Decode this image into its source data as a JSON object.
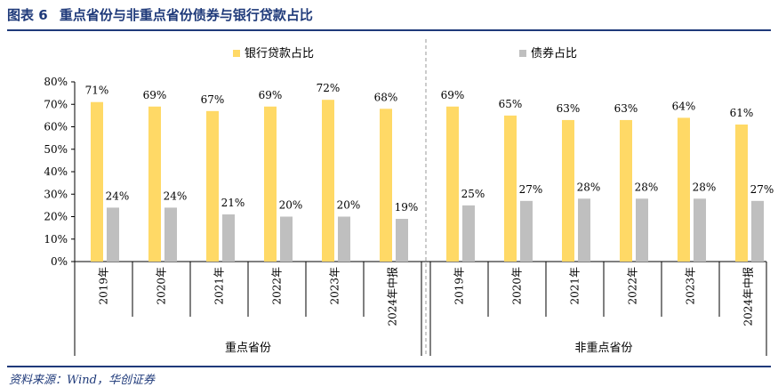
{
  "figure": {
    "number": "图表 6",
    "title": "重点省份与非重点省份债券与银行贷款占比",
    "source": "资料来源：Wind，华创证券"
  },
  "chart_data": {
    "type": "bar",
    "categories": [
      "2019年",
      "2020年",
      "2021年",
      "2022年",
      "2023年",
      "2024年中报",
      "2019年",
      "2020年",
      "2021年",
      "2022年",
      "2023年",
      "2024年中报"
    ],
    "groups": [
      {
        "label": "重点省份",
        "count": 6
      },
      {
        "label": "非重点省份",
        "count": 6
      }
    ],
    "series": [
      {
        "name": "银行贷款占比",
        "color": "#FFD966",
        "values": [
          71,
          69,
          67,
          69,
          72,
          68,
          69,
          65,
          63,
          63,
          64,
          61
        ],
        "labels": [
          "71%",
          "69%",
          "67%",
          "69%",
          "72%",
          "68%",
          "69%",
          "65%",
          "63%",
          "63%",
          "64%",
          "61%"
        ]
      },
      {
        "name": "债券占比",
        "color": "#BFBFBF",
        "values": [
          24,
          24,
          21,
          20,
          20,
          19,
          25,
          27,
          28,
          28,
          28,
          27
        ],
        "labels": [
          "24%",
          "24%",
          "21%",
          "20%",
          "20%",
          "19%",
          "25%",
          "27%",
          "28%",
          "28%",
          "28%",
          "27%"
        ]
      }
    ],
    "y_ticks": [
      "0%",
      "10%",
      "20%",
      "30%",
      "40%",
      "50%",
      "60%",
      "70%",
      "80%"
    ],
    "ylim": [
      0,
      80
    ],
    "legend_position": "top",
    "grid": false
  }
}
